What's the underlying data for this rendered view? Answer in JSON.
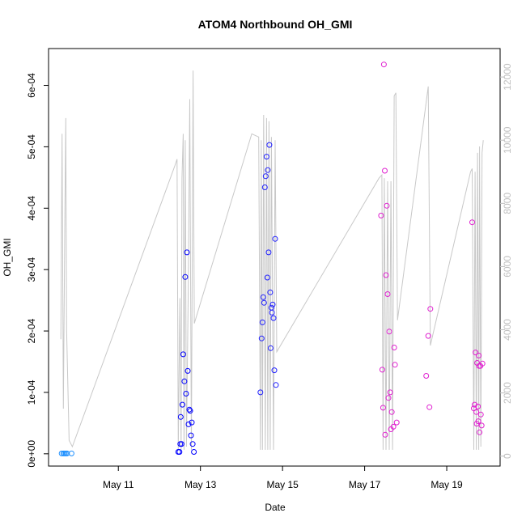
{
  "chart_data": {
    "type": "scatter",
    "title": "ATOM4 Northbound OH_GMI",
    "xlabel": "Date",
    "ylabel": "OH_GMI",
    "x_ticks": [
      "May 11",
      "May 13",
      "May 15",
      "May 17",
      "May 19"
    ],
    "x_tick_values": [
      11,
      13,
      15,
      17,
      19
    ],
    "xlim": [
      9.3,
      20.3
    ],
    "ylim": [
      -2e-05,
      0.00066
    ],
    "y_ticks": [
      "0e+00",
      "1e-04",
      "2e-04",
      "3e-04",
      "4e-04",
      "5e-04",
      "6e-04"
    ],
    "y_tick_values": [
      0,
      0.0001,
      0.0002,
      0.0003,
      0.0004,
      0.0005,
      0.0006
    ],
    "y2_ticks": [
      "0",
      "2000",
      "4000",
      "6000",
      "8000",
      "10000",
      "12000"
    ],
    "y2_tick_values": [
      0,
      2000,
      4000,
      6000,
      8000,
      10000,
      12000
    ],
    "y2lim": [
      -315,
      12900
    ],
    "grid": false,
    "colors": {
      "axis": "#000000",
      "secondary_axis": "#c0c0c0",
      "altitude_line": "#c8c8c8",
      "flight1": "#1e90ff",
      "flight2": "#0000ff",
      "flight3": "#2020ff",
      "flight4": "#e020d0",
      "flight5": "#e020d0"
    },
    "series": [
      {
        "color": "#1e90ff",
        "points": [
          [
            9.62,
            5e-07
          ],
          [
            9.66,
            5e-07
          ],
          [
            9.69,
            5e-07
          ],
          [
            9.72,
            5e-07
          ],
          [
            9.75,
            5e-07
          ],
          [
            9.86,
            5e-07
          ]
        ]
      },
      {
        "color": "#0000ff",
        "points": [
          [
            12.46,
            3e-06
          ],
          [
            12.49,
            3e-06
          ],
          [
            12.51,
            1.6e-05
          ],
          [
            12.52,
            6e-05
          ],
          [
            12.54,
            1.6e-05
          ],
          [
            12.56,
            8e-05
          ],
          [
            12.58,
            0.000162
          ],
          [
            12.61,
            0.000118
          ],
          [
            12.63,
            0.000288
          ],
          [
            12.65,
            9.8e-05
          ],
          [
            12.67,
            0.000328
          ],
          [
            12.69,
            0.000135
          ],
          [
            12.71,
            4.8e-05
          ],
          [
            12.73,
            7.2e-05
          ],
          [
            12.75,
            7e-05
          ],
          [
            12.77,
            3e-05
          ],
          [
            12.79,
            5.1e-05
          ],
          [
            12.81,
            1.6e-05
          ],
          [
            12.84,
            3e-06
          ]
        ]
      },
      {
        "color": "#2020ff",
        "points": [
          [
            14.46,
            0.0001
          ],
          [
            14.49,
            0.000188
          ],
          [
            14.51,
            0.000214
          ],
          [
            14.53,
            0.000255
          ],
          [
            14.55,
            0.000246
          ],
          [
            14.57,
            0.000434
          ],
          [
            14.59,
            0.000452
          ],
          [
            14.61,
            0.000484
          ],
          [
            14.63,
            0.000287
          ],
          [
            14.64,
            0.000462
          ],
          [
            14.66,
            0.000328
          ],
          [
            14.68,
            0.000503
          ],
          [
            14.7,
            0.000263
          ],
          [
            14.71,
            0.000172
          ],
          [
            14.73,
            0.000238
          ],
          [
            14.74,
            0.00023
          ],
          [
            14.76,
            0.000243
          ],
          [
            14.78,
            0.000221
          ],
          [
            14.8,
            0.000136
          ],
          [
            14.82,
            0.00035
          ],
          [
            14.84,
            0.000112
          ]
        ]
      },
      {
        "color": "#e020d0",
        "points": [
          [
            17.4,
            0.000388
          ],
          [
            17.43,
            0.000137
          ],
          [
            17.45,
            7.5e-05
          ],
          [
            17.47,
            0.000634
          ],
          [
            17.49,
            0.000461
          ],
          [
            17.5,
            3.1e-05
          ],
          [
            17.52,
            0.000291
          ],
          [
            17.54,
            0.000404
          ],
          [
            17.56,
            0.00026
          ],
          [
            17.58,
            9.1e-05
          ],
          [
            17.6,
            0.000199
          ],
          [
            17.62,
            0.0001
          ],
          [
            17.64,
            4e-05
          ],
          [
            17.66,
            6.8e-05
          ],
          [
            17.7,
            4.4e-05
          ],
          [
            17.72,
            0.000173
          ],
          [
            17.74,
            0.000145
          ],
          [
            17.78,
            5.1e-05
          ]
        ]
      },
      {
        "color": "#e020d0",
        "points": [
          [
            18.5,
            0.000127
          ],
          [
            18.55,
            0.000192
          ],
          [
            18.58,
            7.6e-05
          ],
          [
            18.6,
            0.000236
          ],
          [
            19.62,
            0.000377
          ],
          [
            19.66,
            7.4e-05
          ],
          [
            19.68,
            8e-05
          ],
          [
            19.7,
            0.000165
          ],
          [
            19.72,
            6.8e-05
          ],
          [
            19.73,
            4.9e-05
          ],
          [
            19.74,
            0.000148
          ],
          [
            19.76,
            7.7e-05
          ],
          [
            19.77,
            5.3e-05
          ],
          [
            19.78,
            0.00016
          ],
          [
            19.79,
            0.000143
          ],
          [
            19.8,
            3.5e-05
          ],
          [
            19.82,
            0.000143
          ],
          [
            19.83,
            6.4e-05
          ],
          [
            19.85,
            4.6e-05
          ],
          [
            19.87,
            0.000147
          ]
        ]
      }
    ],
    "altitude_line": [
      [
        9.6,
        3700
      ],
      [
        9.63,
        10200
      ],
      [
        9.66,
        1500
      ],
      [
        9.7,
        8000
      ],
      [
        9.72,
        10700
      ],
      [
        9.74,
        4000
      ],
      [
        9.8,
        500
      ],
      [
        9.88,
        300
      ],
      [
        12.38,
        9200
      ],
      [
        12.43,
        9400
      ],
      [
        12.46,
        200
      ],
      [
        12.5,
        5000
      ],
      [
        12.53,
        200
      ],
      [
        12.55,
        8800
      ],
      [
        12.58,
        10200
      ],
      [
        12.6,
        200
      ],
      [
        12.63,
        10000
      ],
      [
        12.66,
        300
      ],
      [
        12.7,
        5000
      ],
      [
        12.74,
        11300
      ],
      [
        12.78,
        200
      ],
      [
        12.82,
        12200
      ],
      [
        12.85,
        4200
      ],
      [
        14.25,
        10200
      ],
      [
        14.42,
        10100
      ],
      [
        14.46,
        200
      ],
      [
        14.48,
        10000
      ],
      [
        14.51,
        200
      ],
      [
        14.54,
        10800
      ],
      [
        14.58,
        200
      ],
      [
        14.61,
        10700
      ],
      [
        14.64,
        200
      ],
      [
        14.67,
        10600
      ],
      [
        14.7,
        200
      ],
      [
        14.73,
        10100
      ],
      [
        14.78,
        200
      ],
      [
        14.82,
        10000
      ],
      [
        14.86,
        3300
      ],
      [
        17.35,
        8800
      ],
      [
        17.42,
        8900
      ],
      [
        17.45,
        200
      ],
      [
        17.48,
        8800
      ],
      [
        17.52,
        200
      ],
      [
        17.56,
        8700
      ],
      [
        17.6,
        200
      ],
      [
        17.64,
        8700
      ],
      [
        17.68,
        200
      ],
      [
        17.72,
        11400
      ],
      [
        17.76,
        11500
      ],
      [
        17.8,
        4300
      ],
      [
        18.55,
        11700
      ],
      [
        18.6,
        3500
      ],
      [
        19.58,
        9000
      ],
      [
        19.62,
        9100
      ],
      [
        19.66,
        200
      ],
      [
        19.69,
        9000
      ],
      [
        19.72,
        200
      ],
      [
        19.75,
        9600
      ],
      [
        19.78,
        200
      ],
      [
        19.8,
        9800
      ],
      [
        19.83,
        300
      ],
      [
        19.86,
        9600
      ],
      [
        19.89,
        10000
      ]
    ]
  }
}
